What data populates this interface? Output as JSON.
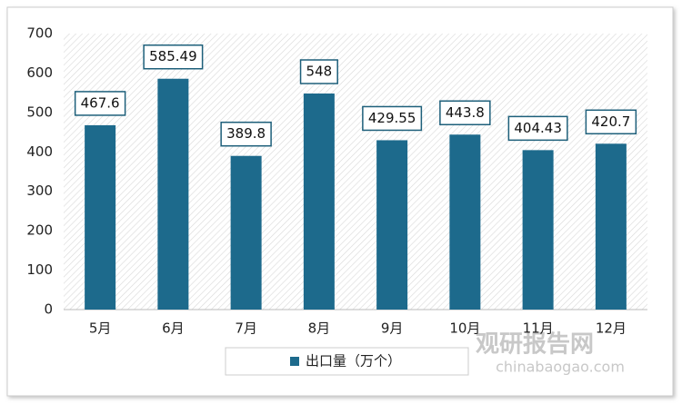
{
  "chart_data": {
    "type": "bar",
    "categories": [
      "5月",
      "6月",
      "7月",
      "8月",
      "9月",
      "10月",
      "11月",
      "12月"
    ],
    "series": [
      {
        "name": "出口量（万个）",
        "color": "#1d6a8c",
        "values": [
          467.6,
          585.49,
          389.8,
          548,
          429.55,
          443.8,
          404.43,
          420.7
        ]
      }
    ],
    "ylim": [
      0,
      700
    ],
    "yticks": [
      0,
      100,
      200,
      300,
      400,
      500,
      600,
      700
    ],
    "legend": "bottom",
    "watermark": [
      "观研报告网",
      "chinabaogao.com"
    ]
  }
}
